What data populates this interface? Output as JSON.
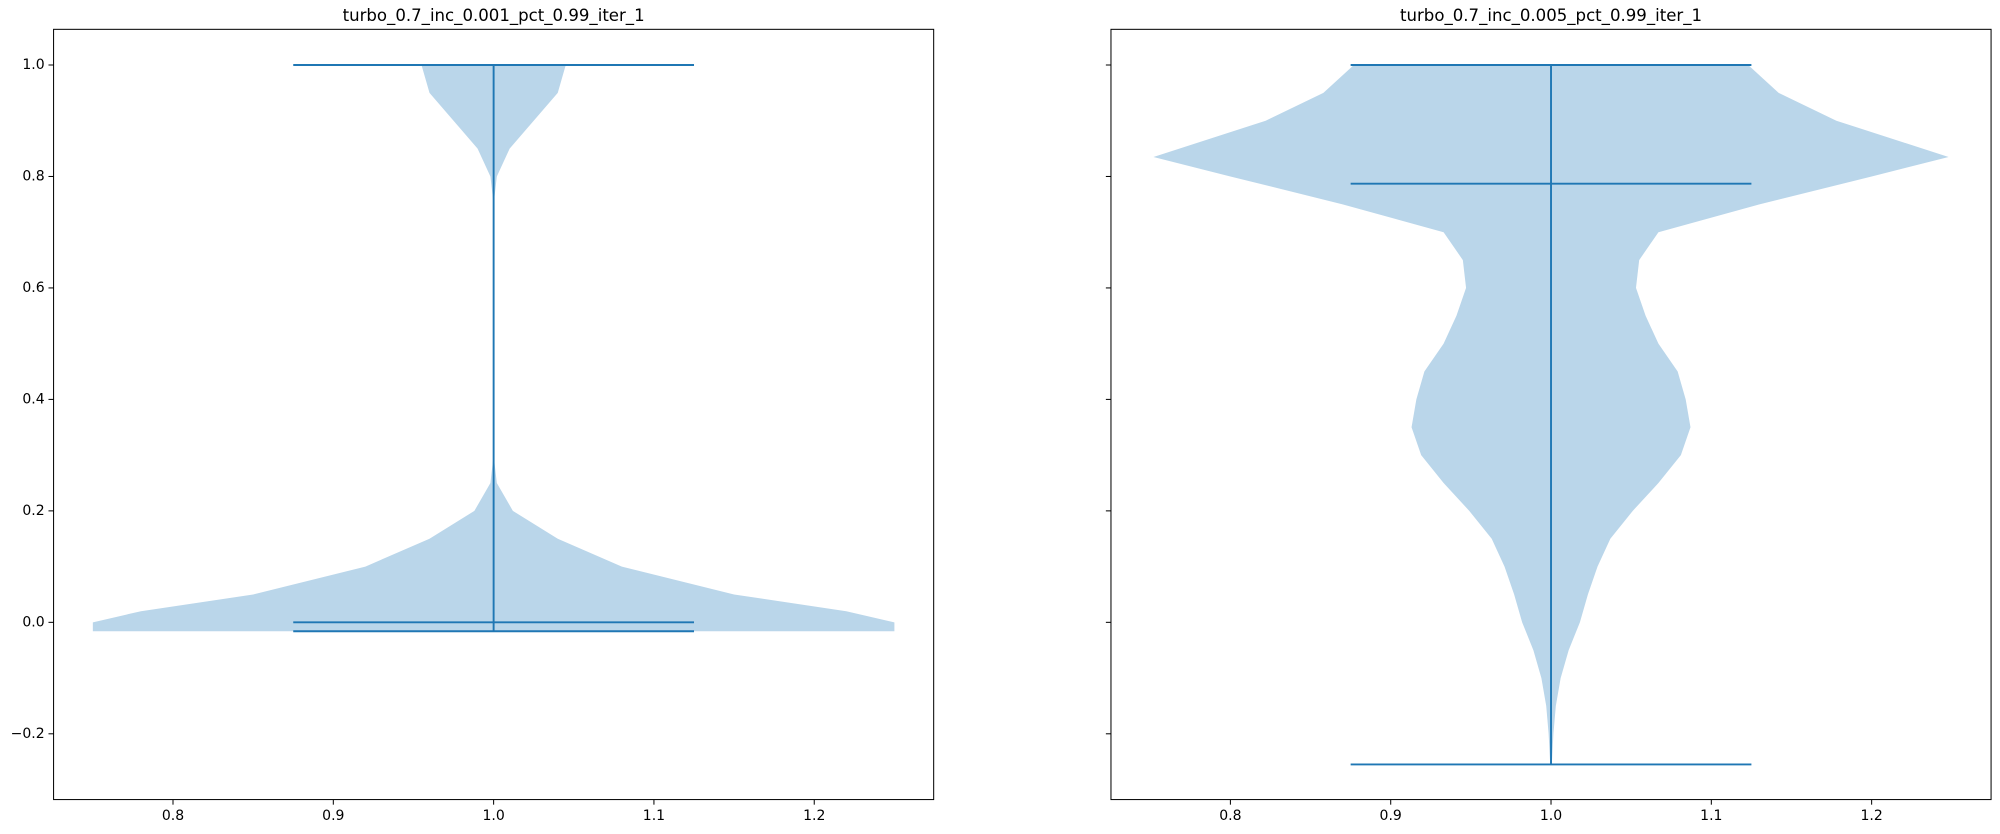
{
  "chart_data": [
    {
      "type": "violin",
      "title": "turbo_0.7_inc_0.001_pct_0.99_iter_1",
      "position": 1,
      "color": "#1f77b4",
      "fill": "#bad6ea",
      "min": -0.016,
      "max": 1.0,
      "median": 0.0,
      "density": {
        "y": [
          -0.016,
          0,
          0.02,
          0.05,
          0.1,
          0.15,
          0.2,
          0.25,
          0.3,
          0.75,
          0.8,
          0.85,
          0.9,
          0.95,
          1.0
        ],
        "width": [
          0.25,
          0.25,
          0.22,
          0.15,
          0.08,
          0.04,
          0.012,
          0.002,
          0,
          0,
          0.002,
          0.01,
          0.025,
          0.04,
          0.045
        ]
      },
      "xlim": [
        0.7255,
        1.2745
      ],
      "xticks": [
        0.8,
        0.9,
        {
          "value": 1,
          "label": "1.0"
        },
        1.1,
        1.2
      ],
      "ylim": [
        -0.318,
        1.064
      ],
      "yticks": [
        {
          "value": -0.2,
          "label": "−0.2"
        },
        {
          "value": 0,
          "label": "0.0"
        },
        0.2,
        0.4,
        0.6,
        0.8,
        {
          "value": 1,
          "label": "1.0"
        }
      ]
    },
    {
      "type": "violin",
      "title": "turbo_0.7_inc_0.005_pct_0.99_iter_1",
      "position": 1,
      "color": "#1f77b4",
      "fill": "#bad6ea",
      "min": -0.255,
      "max": 1.0,
      "median": 0.787,
      "density": {
        "y": [
          -0.255,
          -0.2,
          -0.15,
          -0.1,
          -0.05,
          0,
          0.05,
          0.1,
          0.15,
          0.2,
          0.25,
          0.3,
          0.35,
          0.4,
          0.45,
          0.5,
          0.55,
          0.6,
          0.65,
          0.7,
          0.75,
          0.8,
          0.835,
          0.9,
          0.95,
          1.0
        ],
        "width": [
          0.0005,
          0.0015,
          0.003,
          0.006,
          0.011,
          0.018,
          0.023,
          0.029,
          0.037,
          0.051,
          0.067,
          0.081,
          0.087,
          0.084,
          0.079,
          0.067,
          0.059,
          0.053,
          0.055,
          0.067,
          0.13,
          0.2,
          0.248,
          0.178,
          0.142,
          0.123
        ]
      },
      "xlim": [
        0.7255,
        1.2745
      ],
      "xticks": [
        0.8,
        0.9,
        {
          "value": 1,
          "label": "1.0"
        },
        1.1,
        1.2
      ],
      "ylim": [
        -0.318,
        1.064
      ],
      "yticks": [
        -0.2,
        0,
        0.2,
        0.4,
        0.6,
        0.8,
        1
      ],
      "sharey": true
    }
  ]
}
